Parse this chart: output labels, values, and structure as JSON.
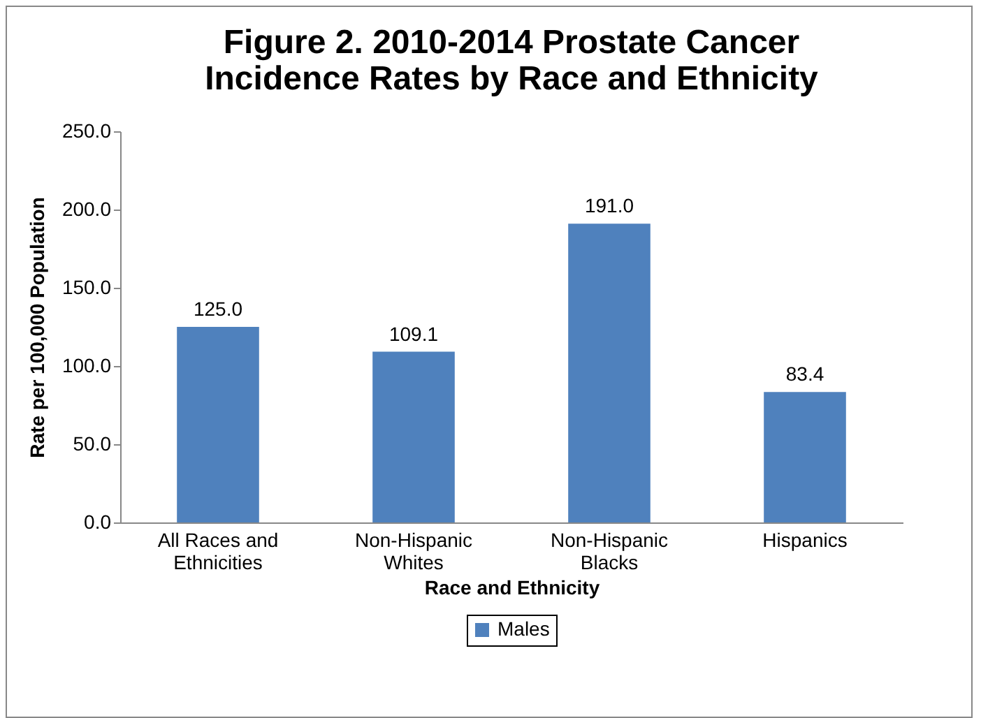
{
  "chart_data": {
    "type": "bar",
    "title": "Figure 2.  2010-2014 Prostate Cancer Incidence Rates by Race and Ethnicity",
    "xlabel": "Race and Ethnicity",
    "ylabel": "Rate per 100,000 Population",
    "categories": [
      "All Races and Ethnicities",
      "Non-Hispanic Whites",
      "Non-Hispanic Blacks",
      "Hispanics"
    ],
    "series": [
      {
        "name": "Males",
        "color": "#4f81bd",
        "values": [
          125.0,
          109.1,
          191.0,
          83.4
        ],
        "value_labels": [
          "125.0",
          "109.1",
          "191.0",
          "83.4"
        ]
      }
    ],
    "ylim": [
      0,
      250
    ],
    "yticks": [
      {
        "value": 0,
        "label": "0.0"
      },
      {
        "value": 50,
        "label": "50.0"
      },
      {
        "value": 100,
        "label": "100.0"
      },
      {
        "value": 150,
        "label": "150.0"
      },
      {
        "value": 200,
        "label": "200.0"
      },
      {
        "value": 250,
        "label": "250.0"
      }
    ],
    "grid": false,
    "legend": "bottom"
  }
}
